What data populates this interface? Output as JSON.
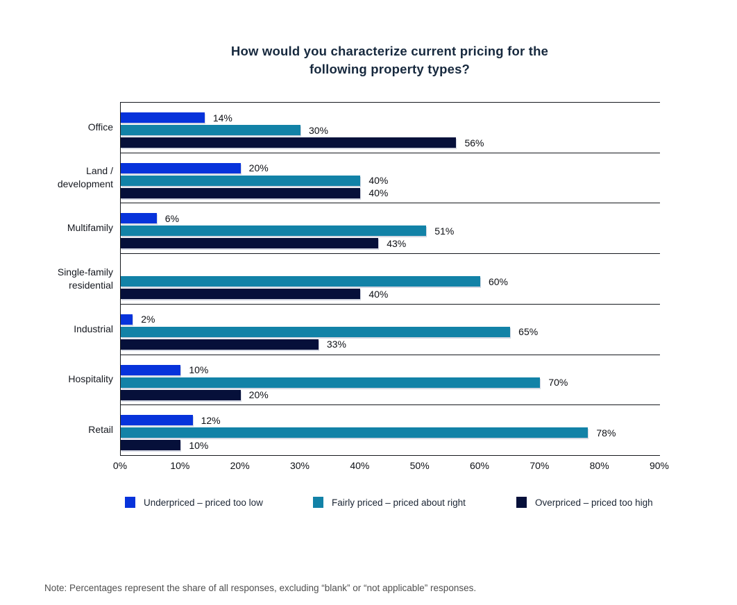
{
  "title": {
    "lines": [
      "How would you characterize current pricing for the",
      "following property types?"
    ]
  },
  "chart_data": {
    "type": "bar",
    "orientation": "horizontal",
    "title": "How would you characterize current pricing for the following property types?",
    "categories": [
      "Office",
      "Land / development",
      "Multifamily",
      "Single-family residential",
      "Industrial",
      "Hospitality",
      "Retail"
    ],
    "categories_multiline": [
      [
        "Office"
      ],
      [
        "Land /",
        "development"
      ],
      [
        "Multifamily"
      ],
      [
        "Single-family",
        "residential"
      ],
      [
        "Industrial"
      ],
      [
        "Hospitality"
      ],
      [
        "Retail"
      ]
    ],
    "series": [
      {
        "name": "Underpriced – priced too low",
        "slug": "underpriced",
        "color": "#0733DB",
        "values": [
          14,
          20,
          6,
          null,
          2,
          10,
          12
        ]
      },
      {
        "name": "Fairly priced – priced about right",
        "slug": "fairly-priced",
        "color": "#1282A7",
        "values": [
          30,
          40,
          51,
          60,
          65,
          70,
          78
        ]
      },
      {
        "name": "Overpriced – priced too high",
        "slug": "overpriced",
        "color": "#06103A",
        "values": [
          56,
          40,
          43,
          40,
          33,
          20,
          10
        ]
      }
    ],
    "value_suffix": "%",
    "x_axis": {
      "min": 0,
      "max": 90,
      "tick_step": 10,
      "ticks": [
        "0%",
        "10%",
        "20%",
        "30%",
        "40%",
        "50%",
        "60%",
        "70%",
        "80%",
        "90%"
      ]
    },
    "grid": "category-divider-lines",
    "legend_position": "bottom"
  },
  "legend": [
    {
      "label": "Underpriced – priced too low",
      "color": "#0733DB"
    },
    {
      "label": "Fairly priced – priced about right",
      "color": "#1282A7"
    },
    {
      "label": "Overpriced – priced too high",
      "color": "#06103A"
    }
  ],
  "note": "Note: Percentages represent the share of all responses, excluding “blank” or “not applicable” responses."
}
